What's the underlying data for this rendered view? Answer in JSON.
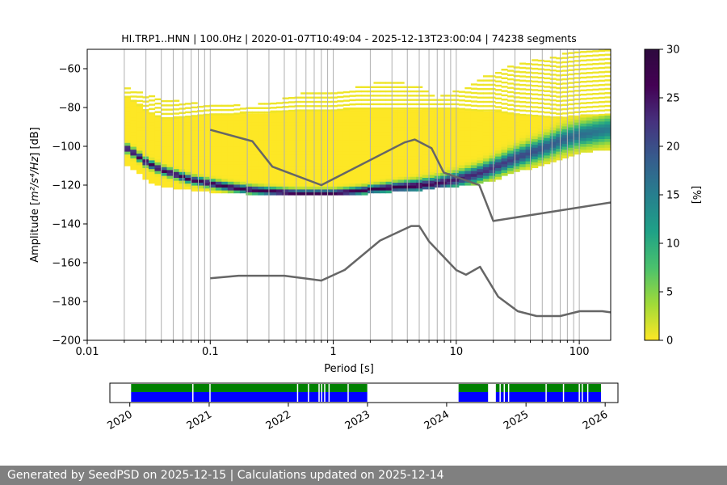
{
  "chart_data": [
    {
      "type": "heatmap",
      "title": "HI.TRP1..HNN | 100.0Hz | 2020-01-07T10:49:04 - 2025-12-13T23:00:04 | 74238 segments",
      "xlabel": "Period [s]",
      "ylabel_prefix": "Amplitude [",
      "ylabel_math": "m²/s⁴/Hz",
      "ylabel_suffix": "] [dB]",
      "xscale": "log",
      "xlim": [
        0.01,
        180
      ],
      "ylim": [
        -200,
        -50
      ],
      "xticks": [
        {
          "value": 0.01,
          "label": "0.01"
        },
        {
          "value": 0.1,
          "label": "0.1"
        },
        {
          "value": 1,
          "label": "1"
        },
        {
          "value": 10,
          "label": "10"
        },
        {
          "value": 100,
          "label": "100"
        }
      ],
      "yticks": [
        {
          "value": -60,
          "label": "−60"
        },
        {
          "value": -80,
          "label": "−80"
        },
        {
          "value": -100,
          "label": "−100"
        },
        {
          "value": -120,
          "label": "−120"
        },
        {
          "value": -140,
          "label": "−140"
        },
        {
          "value": -160,
          "label": "−160"
        },
        {
          "value": -180,
          "label": "−180"
        },
        {
          "value": -200,
          "label": "−200"
        }
      ],
      "grid": true,
      "period_range": [
        0.02,
        180
      ],
      "density_band": {
        "period": [
          0.02,
          0.025,
          0.03,
          0.04,
          0.05,
          0.07,
          0.1,
          0.15,
          0.2,
          0.3,
          0.5,
          0.7,
          1,
          1.5,
          2,
          3,
          5,
          7,
          10,
          15,
          20,
          30,
          50,
          70,
          100,
          180
        ],
        "mode_db": [
          -100,
          -104,
          -108,
          -112,
          -114,
          -117,
          -119,
          -121,
          -122,
          -123,
          -124,
          -124,
          -124,
          -123,
          -122,
          -121,
          -120,
          -119,
          -117,
          -114,
          -111,
          -106,
          -101,
          -97,
          -94,
          -91
        ],
        "upper_db": [
          -74,
          -78,
          -82,
          -86,
          -86,
          -85,
          -84,
          -84,
          -83,
          -83,
          -82,
          -82,
          -82,
          -81,
          -81,
          -81,
          -81,
          -81,
          -81,
          -82,
          -82,
          -84,
          -85,
          -86,
          -85,
          -84
        ],
        "lower_db": [
          -108,
          -112,
          -117,
          -120,
          -121,
          -122,
          -123,
          -124,
          -124,
          -125,
          -125,
          -125,
          -125,
          -125,
          -124,
          -123,
          -122,
          -121,
          -120,
          -119,
          -117,
          -113,
          -109,
          -106,
          -103,
          -101
        ]
      },
      "sparse_upper_db": [
        -70,
        -72,
        -74,
        -75,
        -76,
        -78,
        -79,
        -79,
        -79,
        -78,
        -74,
        -71,
        -72,
        -70,
        -68,
        -66,
        -70,
        -75,
        -72,
        -66,
        -62,
        -58,
        -55,
        -53,
        -51,
        -51
      ],
      "nhnm": {
        "period": [
          0.1,
          0.22,
          0.32,
          0.8,
          3.8,
          4.6,
          6.3,
          7.9,
          15.4,
          20,
          354.8
        ],
        "db": [
          -91.5,
          -97.4,
          -110.5,
          -120,
          -98,
          -96.5,
          -101,
          -113.5,
          -120,
          -138.5,
          -126
        ]
      },
      "nlnm": {
        "period": [
          0.1,
          0.17,
          0.4,
          0.8,
          1.24,
          2.4,
          4.3,
          5,
          6,
          10,
          12,
          15.6,
          21.9,
          31.6,
          45,
          70,
          101,
          154,
          180
        ],
        "db": [
          -168,
          -166.7,
          -166.7,
          -169.2,
          -163.7,
          -148.6,
          -141.1,
          -141.1,
          -149,
          -163.8,
          -166.2,
          -162.1,
          -177.5,
          -185,
          -187.5,
          -187.5,
          -185,
          -185,
          -185.6
        ]
      },
      "colorbar": {
        "colormap": "viridis",
        "label": "[%]",
        "range": [
          0,
          30
        ],
        "ticks": [
          {
            "value": 0,
            "label": "0"
          },
          {
            "value": 5,
            "label": "5"
          },
          {
            "value": 10,
            "label": "10"
          },
          {
            "value": 15,
            "label": "15"
          },
          {
            "value": 20,
            "label": "20"
          },
          {
            "value": 25,
            "label": "25"
          },
          {
            "value": 30,
            "label": "30"
          }
        ]
      }
    },
    {
      "type": "timeline",
      "xlim": [
        "2019-10-01",
        "2026-03-01"
      ],
      "xticks": [
        "2020",
        "2021",
        "2022",
        "2023",
        "2024",
        "2025",
        "2026"
      ],
      "coverage_color": "#008000",
      "used_color": "#0000ff",
      "intervals": [
        {
          "start": "2020-01-07",
          "end": "2022-12-31"
        },
        {
          "start": "2024-02-25",
          "end": "2024-07-10"
        },
        {
          "start": "2024-08-15",
          "end": "2025-12-13"
        }
      ],
      "gaps": [
        "2020-10-15",
        "2021-01-02",
        "2022-02-10",
        "2022-04-01",
        "2022-05-20",
        "2022-06-01",
        "2022-06-15",
        "2022-07-05",
        "2022-10-01",
        "2024-09-01",
        "2024-09-20",
        "2024-10-10",
        "2025-04-01",
        "2025-06-20",
        "2025-09-01",
        "2025-09-15",
        "2025-10-10"
      ]
    }
  ],
  "footer": {
    "text": "Generated by SeedPSD on 2025-12-15 | Calculations updated on 2025-12-14"
  },
  "colors": {
    "curve": "#666666",
    "grid": "#b0b0b0",
    "footer_bg": "#808080"
  }
}
